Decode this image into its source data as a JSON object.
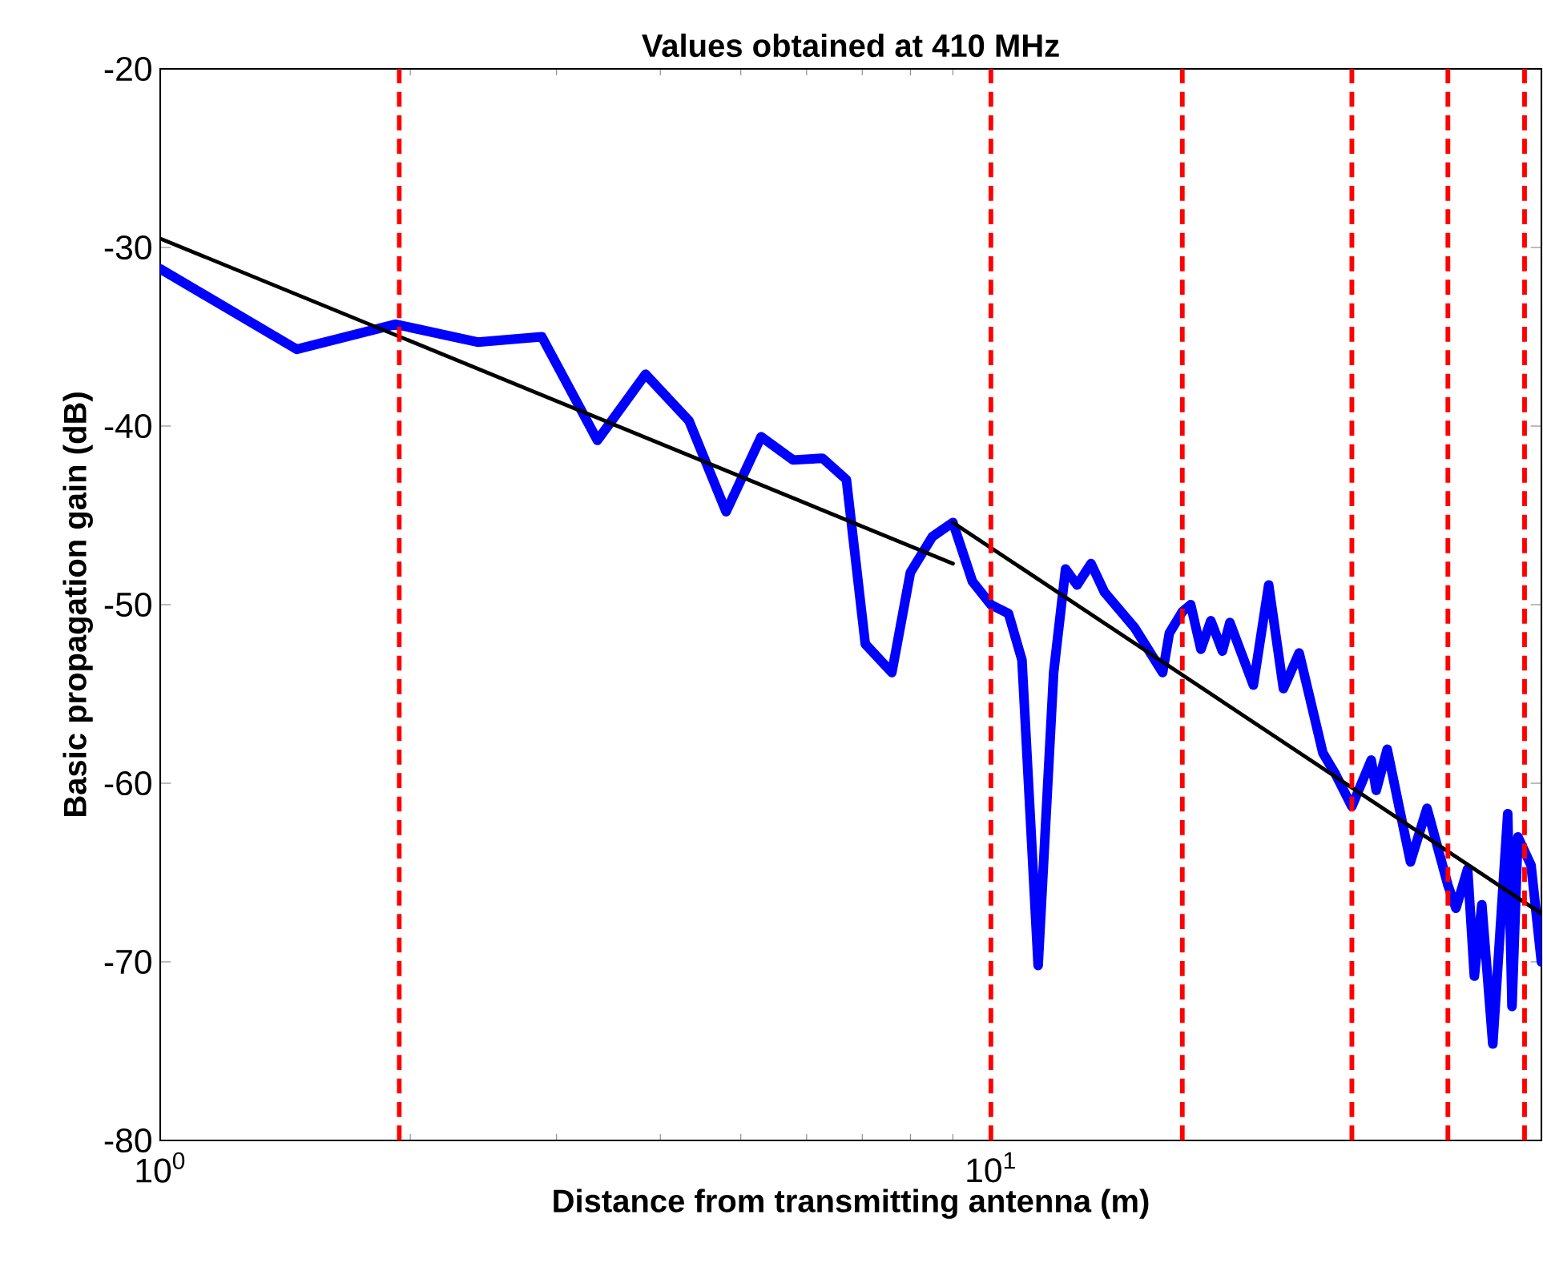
{
  "chart_data": {
    "type": "line",
    "title": "Values obtained at 410 MHz",
    "xlabel": "Distance from transmitting antenna (m)",
    "ylabel": "Basic propagation gain  (dB)",
    "log": "x",
    "xlim": [
      1,
      46
    ],
    "ylim": [
      -80,
      -20
    ],
    "xticks": [
      {
        "value": 1,
        "label": "10$^{0}$"
      },
      {
        "value": 10,
        "label": "10$^{1}$"
      }
    ],
    "yticks": [
      -80,
      -70,
      -60,
      -50,
      -40,
      -30,
      -20
    ],
    "series": [
      {
        "color": "#0000ff",
        "x": [
          1,
          1.46,
          1.92,
          2.41,
          2.88,
          3.36,
          3.84,
          4.33,
          4.8,
          5.29,
          5.78,
          6.27,
          6.7,
          7.06,
          7.6,
          8.0,
          8.5,
          9.0,
          9.5,
          10.0,
          10.5,
          10.9,
          11.4,
          11.9,
          12.3,
          12.7,
          13.2,
          13.7,
          14.9,
          16.1,
          16.4,
          17.0,
          17.4,
          17.9,
          18.4,
          19.0,
          19.4,
          20.7,
          21.6,
          22.5,
          23.5,
          25.1,
          26.0,
          27.2,
          28.7,
          29.1,
          30.0,
          32.0,
          33.5,
          35.5,
          36.3,
          37.5,
          38.2,
          39.0,
          40.2,
          41.9,
          42.4,
          43.1,
          44.7,
          46.0
        ],
        "values": [
          -31.2,
          -35.7,
          -34.3,
          -35.3,
          -35.0,
          -40.8,
          -37.1,
          -39.7,
          -44.8,
          -40.6,
          -41.9,
          -41.8,
          -43.0,
          -52.2,
          -53.8,
          -48.2,
          -46.2,
          -45.4,
          -48.7,
          -50.0,
          -50.5,
          -53.1,
          -70.2,
          -53.8,
          -48.0,
          -48.9,
          -47.7,
          -49.3,
          -51.3,
          -53.8,
          -51.6,
          -50.4,
          -50.0,
          -52.5,
          -50.9,
          -52.6,
          -51.0,
          -54.5,
          -48.9,
          -54.7,
          -52.7,
          -58.3,
          -59.5,
          -61.3,
          -58.7,
          -60.4,
          -58.1,
          -64.4,
          -61.4,
          -65.7,
          -67.0,
          -64.8,
          -70.8,
          -66.8,
          -74.6,
          -61.7,
          -72.5,
          -63.0,
          -64.6,
          -70.0
        ]
      },
      {
        "color": "#000000",
        "x": [
          1,
          9.0
        ],
        "values": [
          -29.5,
          -47.7
        ]
      },
      {
        "color": "#000000",
        "x": [
          9.0,
          46.0
        ],
        "values": [
          -45.4,
          -67.3
        ]
      }
    ],
    "ref_lines": [
      {
        "axis": "x",
        "value": 1.94,
        "color": "#ff0000",
        "line_style": "dashed"
      },
      {
        "axis": "x",
        "value": 10,
        "color": "#ff0000",
        "line_style": "dashed"
      },
      {
        "axis": "x",
        "value": 17.0,
        "color": "#ff0000",
        "line_style": "dashed"
      },
      {
        "axis": "x",
        "value": 27.2,
        "color": "#ff0000",
        "line_style": "dashed"
      },
      {
        "axis": "x",
        "value": 35.5,
        "color": "#ff0000",
        "line_style": "dashed"
      },
      {
        "axis": "x",
        "value": 43.9,
        "color": "#ff0000",
        "line_style": "dashed"
      }
    ]
  }
}
